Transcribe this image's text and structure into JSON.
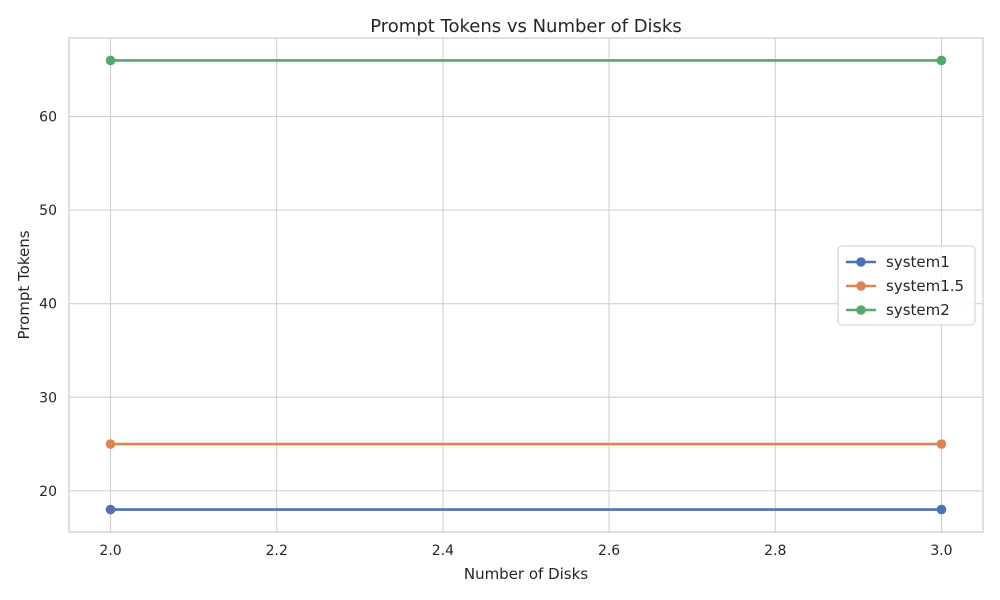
{
  "chart_data": {
    "type": "line",
    "title": "Prompt Tokens vs Number of Disks",
    "xlabel": "Number of Disks",
    "ylabel": "Prompt Tokens",
    "xlim": [
      1.95,
      3.05
    ],
    "ylim": [
      15.6,
      68.4
    ],
    "x_ticks": [
      2.0,
      2.2,
      2.4,
      2.6,
      2.8,
      3.0
    ],
    "x_tick_labels": [
      "2.0",
      "2.2",
      "2.4",
      "2.6",
      "2.8",
      "3.0"
    ],
    "y_ticks": [
      20,
      30,
      40,
      50,
      60
    ],
    "y_tick_labels": [
      "20",
      "30",
      "40",
      "50",
      "60"
    ],
    "grid": true,
    "legend_position": "center-right",
    "series": [
      {
        "name": "system1",
        "color": "#4c72b0",
        "x": [
          2.0,
          3.0
        ],
        "y": [
          18,
          18
        ]
      },
      {
        "name": "system1.5",
        "color": "#dd8452",
        "x": [
          2.0,
          3.0
        ],
        "y": [
          25,
          25
        ]
      },
      {
        "name": "system2",
        "color": "#55a868",
        "x": [
          2.0,
          3.0
        ],
        "y": [
          66,
          66
        ]
      }
    ]
  }
}
